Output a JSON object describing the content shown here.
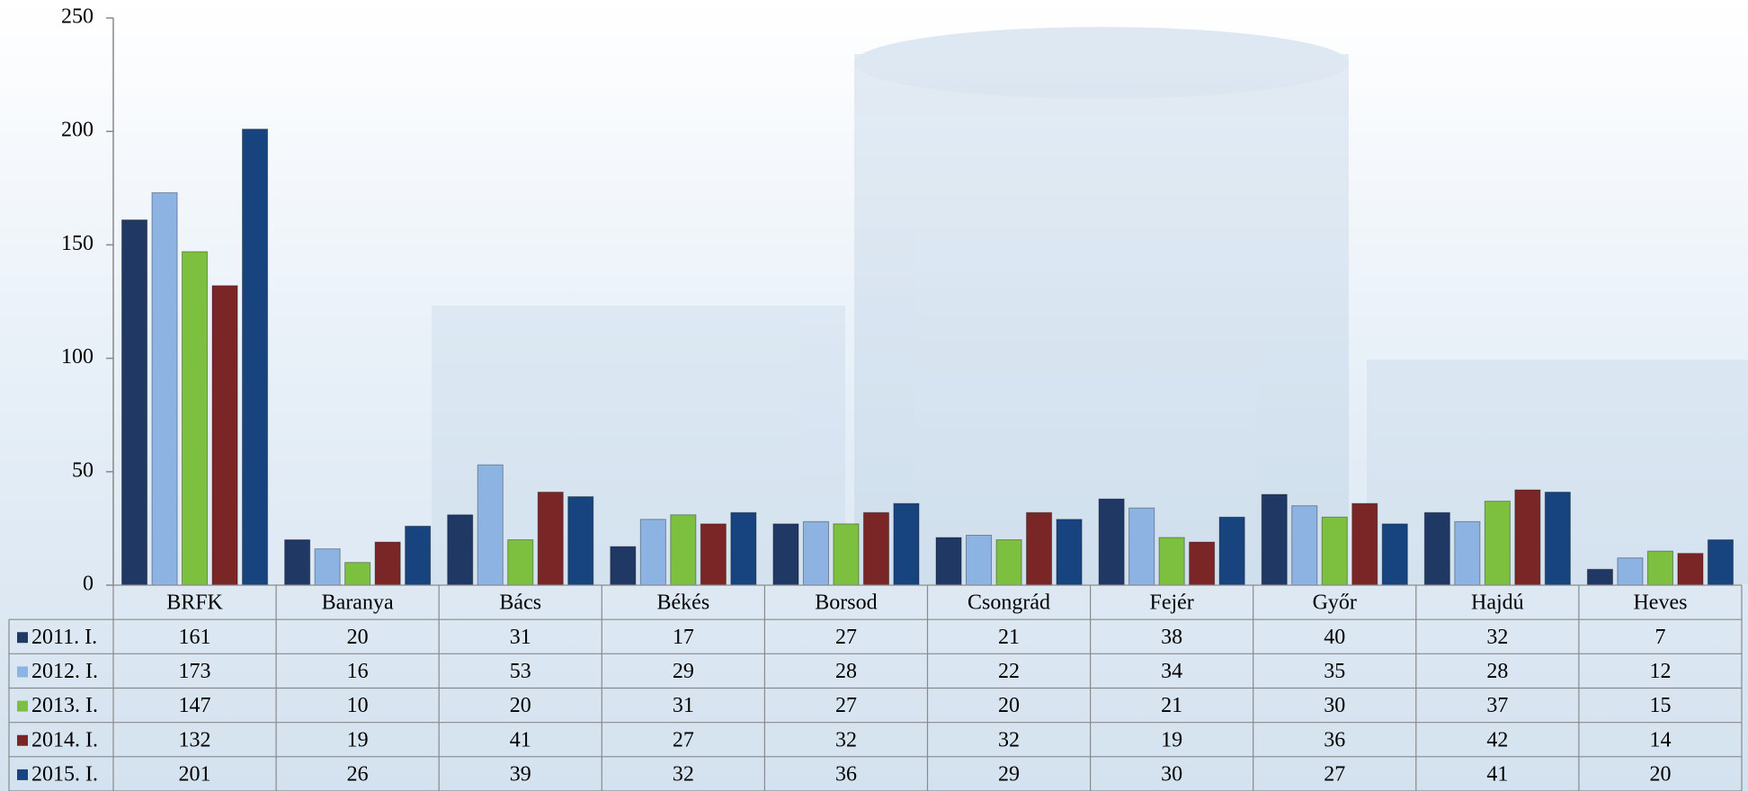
{
  "chart_data": {
    "type": "bar",
    "categories": [
      "BRFK",
      "Baranya",
      "Bács",
      "Békés",
      "Borsod",
      "Csongrád",
      "Fejér",
      "Győr",
      "Hajdú",
      "Heves"
    ],
    "series": [
      {
        "name": "2011. I.",
        "color": "#1f3864",
        "values": [
          161,
          20,
          31,
          17,
          27,
          21,
          38,
          40,
          32,
          7
        ]
      },
      {
        "name": "2012. I.",
        "color": "#8db3e2",
        "values": [
          173,
          16,
          53,
          29,
          28,
          22,
          34,
          35,
          28,
          12
        ]
      },
      {
        "name": "2013. I.",
        "color": "#7dc03f",
        "values": [
          147,
          10,
          20,
          31,
          27,
          20,
          21,
          30,
          37,
          15
        ]
      },
      {
        "name": "2014. I.",
        "color": "#7b2626",
        "values": [
          132,
          19,
          41,
          27,
          32,
          32,
          19,
          36,
          42,
          14
        ]
      },
      {
        "name": "2015. I.",
        "color": "#17437e",
        "values": [
          201,
          26,
          39,
          32,
          36,
          29,
          30,
          27,
          41,
          20
        ]
      }
    ],
    "ylim": [
      0,
      250
    ],
    "yticks": [
      0,
      50,
      100,
      150,
      200,
      250
    ]
  }
}
